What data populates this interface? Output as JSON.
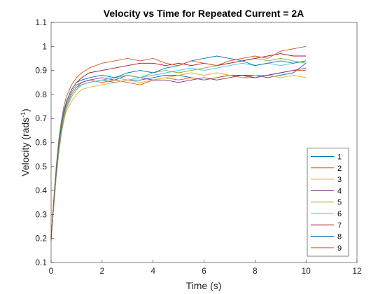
{
  "chart_data": {
    "type": "line",
    "title": "Velocity vs Time for Repeated Current = 2A",
    "xlabel": "Time (s)",
    "ylabel_main": "Velocity (rads",
    "ylabel_sup": "-1",
    "ylabel_close": ")",
    "xlim": [
      0,
      12
    ],
    "ylim": [
      0.1,
      1.1
    ],
    "xticks": [
      "0",
      "2",
      "4",
      "6",
      "8",
      "10",
      "12"
    ],
    "yticks": [
      "0.1",
      "0.2",
      "0.3",
      "0.4",
      "0.5",
      "0.6",
      "0.7",
      "0.8",
      "0.9",
      "1",
      "1.1"
    ],
    "grid": false,
    "legend_position": "bottom-right",
    "series": [
      {
        "name": "1",
        "color": "#0072BD",
        "x": [
          0,
          0.1,
          0.2,
          0.3,
          0.4,
          0.5,
          0.6,
          0.8,
          1,
          1.2,
          1.5,
          2,
          2.5,
          3,
          3.5,
          4,
          4.5,
          5,
          5.5,
          6,
          6.5,
          7,
          7.5,
          8,
          8.5,
          9,
          9.5,
          10
        ],
        "y": [
          0.19,
          0.33,
          0.46,
          0.57,
          0.65,
          0.71,
          0.75,
          0.8,
          0.83,
          0.84,
          0.85,
          0.86,
          0.85,
          0.86,
          0.86,
          0.87,
          0.88,
          0.88,
          0.87,
          0.86,
          0.87,
          0.88,
          0.88,
          0.88,
          0.87,
          0.88,
          0.89,
          0.93
        ]
      },
      {
        "name": "2",
        "color": "#D95319",
        "x": [
          0,
          0.1,
          0.2,
          0.3,
          0.4,
          0.5,
          0.6,
          0.8,
          1,
          1.2,
          1.5,
          2,
          2.5,
          3,
          3.5,
          4,
          4.5,
          5,
          5.5,
          6,
          6.5,
          7,
          7.5,
          8,
          8.5,
          9,
          9.5,
          10
        ],
        "y": [
          0.2,
          0.34,
          0.47,
          0.58,
          0.66,
          0.72,
          0.76,
          0.81,
          0.84,
          0.85,
          0.86,
          0.85,
          0.86,
          0.85,
          0.84,
          0.86,
          0.87,
          0.86,
          0.87,
          0.86,
          0.87,
          0.88,
          0.87,
          0.87,
          0.88,
          0.89,
          0.9,
          0.9
        ]
      },
      {
        "name": "3",
        "color": "#EDB120",
        "x": [
          0,
          0.1,
          0.2,
          0.3,
          0.4,
          0.5,
          0.6,
          0.8,
          1,
          1.2,
          1.5,
          2,
          2.5,
          3,
          3.5,
          4,
          4.5,
          5,
          5.5,
          6,
          6.5,
          7,
          7.5,
          8,
          8.5,
          9,
          9.5,
          10
        ],
        "y": [
          0.19,
          0.32,
          0.45,
          0.55,
          0.63,
          0.69,
          0.73,
          0.77,
          0.8,
          0.82,
          0.83,
          0.84,
          0.85,
          0.86,
          0.85,
          0.86,
          0.87,
          0.88,
          0.89,
          0.88,
          0.89,
          0.88,
          0.87,
          0.88,
          0.88,
          0.87,
          0.88,
          0.87
        ]
      },
      {
        "name": "4",
        "color": "#7E2F8E",
        "x": [
          0,
          0.1,
          0.2,
          0.3,
          0.4,
          0.5,
          0.6,
          0.8,
          1,
          1.2,
          1.5,
          2,
          2.5,
          3,
          3.5,
          4,
          4.5,
          5,
          5.5,
          6,
          6.5,
          7,
          7.5,
          8,
          8.5,
          9,
          9.5,
          10
        ],
        "y": [
          0.2,
          0.34,
          0.47,
          0.57,
          0.65,
          0.71,
          0.75,
          0.8,
          0.83,
          0.85,
          0.86,
          0.87,
          0.86,
          0.88,
          0.87,
          0.86,
          0.86,
          0.85,
          0.86,
          0.87,
          0.86,
          0.87,
          0.88,
          0.87,
          0.88,
          0.89,
          0.9,
          0.91
        ]
      },
      {
        "name": "5",
        "color": "#77AC30",
        "x": [
          0,
          0.1,
          0.2,
          0.3,
          0.4,
          0.5,
          0.6,
          0.8,
          1,
          1.2,
          1.5,
          2,
          2.5,
          3,
          3.5,
          4,
          4.5,
          5,
          5.5,
          6,
          6.5,
          7,
          7.5,
          8,
          8.5,
          9,
          9.5,
          10
        ],
        "y": [
          0.19,
          0.33,
          0.46,
          0.56,
          0.64,
          0.7,
          0.74,
          0.79,
          0.82,
          0.84,
          0.85,
          0.86,
          0.87,
          0.88,
          0.87,
          0.89,
          0.9,
          0.89,
          0.9,
          0.91,
          0.92,
          0.93,
          0.94,
          0.95,
          0.94,
          0.95,
          0.94,
          0.93
        ]
      },
      {
        "name": "6",
        "color": "#4DBEEE",
        "x": [
          0,
          0.1,
          0.2,
          0.3,
          0.4,
          0.5,
          0.6,
          0.8,
          1,
          1.2,
          1.5,
          2,
          2.5,
          3,
          3.5,
          4,
          4.5,
          5,
          5.5,
          6,
          6.5,
          7,
          7.5,
          8,
          8.5,
          9,
          9.5,
          10
        ],
        "y": [
          0.19,
          0.33,
          0.46,
          0.57,
          0.65,
          0.71,
          0.75,
          0.8,
          0.83,
          0.84,
          0.85,
          0.86,
          0.87,
          0.86,
          0.87,
          0.88,
          0.89,
          0.9,
          0.91,
          0.9,
          0.91,
          0.92,
          0.93,
          0.92,
          0.93,
          0.92,
          0.93,
          0.94
        ]
      },
      {
        "name": "7",
        "color": "#A2142F",
        "x": [
          0,
          0.1,
          0.2,
          0.3,
          0.4,
          0.5,
          0.6,
          0.8,
          1,
          1.2,
          1.5,
          2,
          2.5,
          3,
          3.5,
          4,
          4.5,
          5,
          5.5,
          6,
          6.5,
          7,
          7.5,
          8,
          8.5,
          9,
          9.5,
          10
        ],
        "y": [
          0.2,
          0.35,
          0.48,
          0.59,
          0.67,
          0.73,
          0.77,
          0.82,
          0.85,
          0.87,
          0.89,
          0.9,
          0.91,
          0.92,
          0.93,
          0.93,
          0.92,
          0.93,
          0.92,
          0.93,
          0.92,
          0.93,
          0.94,
          0.95,
          0.96,
          0.97,
          0.96,
          0.96
        ]
      },
      {
        "name": "8",
        "color": "#0072BD",
        "x": [
          0,
          0.1,
          0.2,
          0.3,
          0.4,
          0.5,
          0.6,
          0.8,
          1,
          1.2,
          1.5,
          2,
          2.5,
          3,
          3.5,
          4,
          4.5,
          5,
          5.5,
          6,
          6.5,
          7,
          7.5,
          8,
          8.5,
          9,
          9.5,
          10
        ],
        "y": [
          0.2,
          0.35,
          0.48,
          0.59,
          0.67,
          0.73,
          0.77,
          0.82,
          0.85,
          0.86,
          0.87,
          0.88,
          0.87,
          0.89,
          0.9,
          0.89,
          0.91,
          0.92,
          0.94,
          0.95,
          0.96,
          0.95,
          0.94,
          0.92,
          0.93,
          0.94,
          0.93,
          0.94
        ]
      },
      {
        "name": "9",
        "color": "#D95319",
        "x": [
          0,
          0.1,
          0.2,
          0.3,
          0.4,
          0.5,
          0.6,
          0.8,
          1,
          1.2,
          1.5,
          2,
          2.5,
          3,
          3.5,
          4,
          4.5,
          5,
          5.5,
          6,
          6.5,
          7,
          7.5,
          8,
          8.5,
          9,
          9.5,
          10
        ],
        "y": [
          0.2,
          0.36,
          0.5,
          0.61,
          0.69,
          0.75,
          0.79,
          0.84,
          0.87,
          0.89,
          0.91,
          0.93,
          0.94,
          0.95,
          0.94,
          0.95,
          0.93,
          0.92,
          0.94,
          0.93,
          0.92,
          0.94,
          0.95,
          0.96,
          0.95,
          0.98,
          0.99,
          1.0
        ]
      }
    ]
  }
}
